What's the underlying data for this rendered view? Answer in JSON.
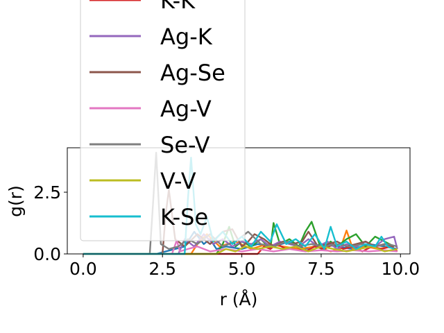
{
  "chart_data": {
    "type": "line",
    "title": "",
    "xlabel": "r (Å)",
    "ylabel": "g(r)",
    "xlim": [
      -0.5,
      10.3
    ],
    "ylim": [
      0,
      4.3
    ],
    "xticks": [
      0.0,
      2.5,
      5.0,
      7.5,
      10.0
    ],
    "xtick_labels": [
      "0.0",
      "2.5",
      "5.0",
      "7.5",
      "10.0"
    ],
    "yticks": [
      0.0,
      2.5
    ],
    "ytick_labels": [
      "0.0",
      "2.5"
    ],
    "legend_position": "upper-left",
    "legend_entries": [
      "K-K",
      "Ag-K",
      "Ag-Se",
      "Ag-V",
      "Se-V",
      "V-V",
      "K-Se"
    ],
    "series": [
      {
        "name": "",
        "color": "#1f77b4",
        "x": [
          0,
          2.3,
          3.2,
          3.5,
          3.8,
          4.0,
          4.2,
          4.5,
          5.0,
          5.5,
          6.0,
          6.5,
          7.0,
          7.5,
          8.0,
          8.5,
          9.0,
          9.5,
          9.9
        ],
        "y": [
          0,
          0,
          0.3,
          0.9,
          0.4,
          0.6,
          0.2,
          0.3,
          0.2,
          0.4,
          0.3,
          0.5,
          0.2,
          0.4,
          0.3,
          0.2,
          0.4,
          0.3,
          0.2
        ]
      },
      {
        "name": "",
        "color": "#ff7f0e",
        "x": [
          0,
          3.4,
          3.6,
          3.9,
          4.3,
          4.8,
          5.3,
          5.8,
          6.3,
          6.8,
          7.3,
          7.8,
          8.1,
          8.3,
          8.5,
          8.9,
          9.3,
          9.7,
          9.9
        ],
        "y": [
          0,
          0,
          0.4,
          0.8,
          0.3,
          0.5,
          0.2,
          0.4,
          0.3,
          0.2,
          0.3,
          0.1,
          0.2,
          0.95,
          0.2,
          0.3,
          0.2,
          0.3,
          0.1
        ]
      },
      {
        "name": "",
        "color": "#2ca02c",
        "x": [
          0,
          4.2,
          4.4,
          4.6,
          4.8,
          5.0,
          5.3,
          5.6,
          5.9,
          6.0,
          6.2,
          6.5,
          6.8,
          7.0,
          7.2,
          7.5,
          7.8,
          8.0,
          8.3,
          8.6,
          8.9,
          9.2,
          9.5,
          9.8
        ],
        "y": [
          0,
          0,
          0.4,
          1.1,
          0.3,
          0.5,
          0.3,
          0.6,
          0.2,
          1.25,
          0.4,
          0.6,
          0.3,
          0.9,
          1.3,
          0.2,
          0.5,
          0.3,
          0.6,
          0.8,
          0.3,
          0.7,
          0.5,
          0.3
        ]
      },
      {
        "name": "K-K",
        "color": "#d62728",
        "x": [
          0,
          5.5,
          5.7,
          5.9,
          6.1,
          6.4,
          6.7,
          7.0,
          7.3,
          7.6,
          7.9,
          8.2,
          8.5,
          8.8,
          9.1,
          9.4,
          9.7,
          9.9
        ],
        "y": [
          0,
          0,
          0.3,
          0.2,
          0.4,
          0.2,
          0.3,
          0.1,
          0.3,
          0.2,
          0.4,
          0.2,
          0.3,
          0.1,
          0.3,
          0.2,
          0.3,
          0.1
        ]
      },
      {
        "name": "Ag-K",
        "color": "#9467bd",
        "x": [
          0,
          3.0,
          3.2,
          3.5,
          3.8,
          4.1,
          4.4,
          4.7,
          5.0,
          5.3,
          5.6,
          5.9,
          6.2,
          6.5,
          6.8,
          7.1,
          7.4,
          7.7,
          8.0,
          8.3,
          8.6,
          8.9,
          9.2,
          9.5,
          9.8,
          9.9
        ],
        "y": [
          0,
          0,
          0.6,
          0.3,
          0.8,
          0.4,
          0.6,
          0.3,
          0.5,
          0.4,
          0.6,
          0.3,
          0.5,
          0.4,
          0.3,
          0.6,
          0.3,
          0.5,
          0.2,
          0.4,
          0.3,
          0.5,
          0.3,
          0.6,
          0.7,
          0.2
        ]
      },
      {
        "name": "Ag-Se",
        "color": "#8c564b",
        "x": [
          0,
          2.5,
          2.6,
          2.7,
          2.9,
          3.2,
          3.6,
          4.0,
          4.4,
          4.7,
          5.0,
          5.2,
          5.4,
          5.7,
          6.0,
          6.3,
          6.6,
          6.9,
          7.1,
          7.4,
          7.7,
          8.0,
          8.3,
          8.6,
          8.9,
          9.2,
          9.5,
          9.8
        ],
        "y": [
          0,
          0,
          1.6,
          2.6,
          0.6,
          0.3,
          0.8,
          0.4,
          0.9,
          1.0,
          0.3,
          0.5,
          0.8,
          0.6,
          0.3,
          0.5,
          0.4,
          0.5,
          0.9,
          0.3,
          0.4,
          0.5,
          0.3,
          0.4,
          0.5,
          0.3,
          0.4,
          0.3
        ]
      },
      {
        "name": "Ag-V",
        "color": "#e377c2",
        "x": [
          0,
          2.8,
          2.95,
          3.05,
          3.3,
          3.6,
          4.0,
          4.5,
          5.0,
          5.5,
          6.0,
          6.5,
          7.0,
          7.5,
          8.0,
          8.5,
          9.0,
          9.5,
          9.9
        ],
        "y": [
          0,
          0,
          0.55,
          0.1,
          0.2,
          0.3,
          0.1,
          0.2,
          0.1,
          0.2,
          0.1,
          0.2,
          0.1,
          0.15,
          0.1,
          0.15,
          0.1,
          0.15,
          0.1
        ]
      },
      {
        "name": "Se-V",
        "color": "#7f7f7f",
        "x": [
          0,
          2.1,
          2.2,
          2.3,
          2.45,
          2.7,
          3.0,
          3.3,
          3.6,
          4.0,
          4.4,
          4.8,
          5.2,
          5.6,
          6.0,
          6.4,
          6.8,
          7.2,
          7.6,
          8.0,
          8.4,
          8.8,
          9.2,
          9.6,
          9.9
        ],
        "y": [
          0,
          0,
          2.0,
          4.1,
          0.4,
          0.2,
          0.3,
          0.6,
          0.4,
          0.8,
          0.3,
          0.5,
          0.9,
          0.4,
          0.3,
          0.5,
          0.3,
          0.4,
          0.3,
          0.4,
          0.3,
          0.4,
          0.3,
          0.4,
          0.3
        ]
      },
      {
        "name": "V-V",
        "color": "#bcbd22",
        "x": [
          0,
          4.2,
          4.5,
          4.8,
          5.1,
          5.5,
          5.9,
          6.3,
          6.7,
          7.1,
          7.5,
          7.9,
          8.3,
          8.7,
          9.1,
          9.5,
          9.9
        ],
        "y": [
          0,
          0,
          0.2,
          0.1,
          0.3,
          0.2,
          0.3,
          0.2,
          0.3,
          0.1,
          0.3,
          0.2,
          0.1,
          0.2,
          0.3,
          0.1,
          0.2
        ]
      },
      {
        "name": "K-Se",
        "color": "#17becf",
        "x": [
          0,
          3.2,
          3.3,
          3.4,
          3.55,
          3.7,
          3.9,
          4.1,
          4.4,
          4.7,
          5.0,
          5.3,
          5.6,
          5.9,
          6.1,
          6.4,
          6.7,
          7.0,
          7.3,
          7.6,
          7.8,
          8.0,
          8.3,
          8.6,
          8.9,
          9.2,
          9.4,
          9.6,
          9.8
        ],
        "y": [
          0,
          0,
          2.2,
          3.9,
          1.2,
          0.8,
          1.5,
          0.5,
          0.9,
          0.4,
          0.7,
          0.3,
          0.9,
          0.5,
          1.2,
          0.4,
          0.6,
          0.3,
          0.8,
          0.2,
          1.1,
          0.3,
          0.5,
          0.2,
          0.4,
          0.3,
          0.7,
          0.3,
          0.2
        ]
      }
    ]
  }
}
